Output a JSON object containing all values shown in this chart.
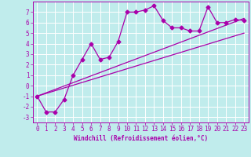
{
  "title": "",
  "xlabel": "Windchill (Refroidissement éolien,°C)",
  "xlim": [
    -0.5,
    23.5
  ],
  "ylim": [
    -3.5,
    8.0
  ],
  "xticks": [
    0,
    1,
    2,
    3,
    4,
    5,
    6,
    7,
    8,
    9,
    10,
    11,
    12,
    13,
    14,
    15,
    16,
    17,
    18,
    19,
    20,
    21,
    22,
    23
  ],
  "yticks": [
    -3,
    -2,
    -1,
    0,
    1,
    2,
    3,
    4,
    5,
    6,
    7
  ],
  "bg_color": "#c0ecec",
  "line_color": "#aa00aa",
  "grid_color": "#ffffff",
  "line1_x": [
    0,
    1,
    2,
    3,
    4,
    5,
    6,
    7,
    8,
    9,
    10,
    11,
    12,
    13,
    14,
    15,
    16,
    17,
    18,
    19,
    20,
    21,
    22,
    23
  ],
  "line1_y": [
    -1.0,
    -2.5,
    -2.5,
    -1.3,
    1.0,
    2.5,
    4.0,
    2.5,
    2.7,
    4.2,
    7.0,
    7.0,
    7.2,
    7.6,
    6.2,
    5.5,
    5.5,
    5.2,
    5.2,
    7.5,
    6.0,
    6.0,
    6.3,
    6.2
  ],
  "line2_x": [
    0,
    23
  ],
  "line2_y": [
    -1.0,
    5.0
  ],
  "line3_x": [
    0,
    23
  ],
  "line3_y": [
    -1.0,
    6.4
  ],
  "marker": "D",
  "marker_size": 2.5,
  "line_width": 0.9,
  "tick_fontsize": 5.5,
  "xlabel_fontsize": 5.5
}
